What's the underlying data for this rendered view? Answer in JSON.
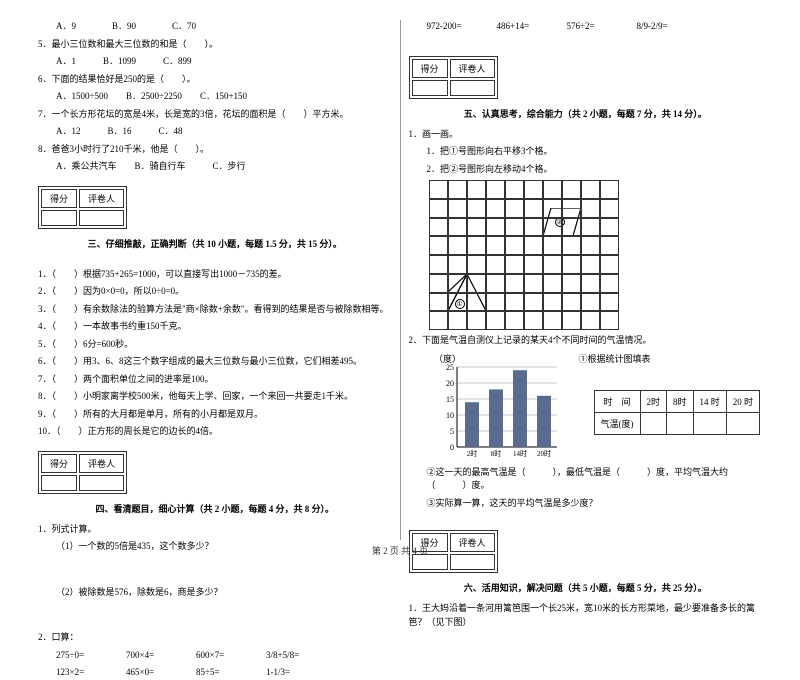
{
  "col1": {
    "q4_opts": {
      "a": "A．9",
      "b": "B．90",
      "c": "C．70"
    },
    "q5": "5．最小三位数和最大三位数的和是（　　）。",
    "q5_opts": {
      "a": "A．1",
      "b": "B．1099",
      "c": "C．899"
    },
    "q6": "6．下面的结果恰好是250的是（　　）。",
    "q6_opts": {
      "a": "A．1500÷500",
      "b": "B．2500÷2250",
      "c": "C．150+150"
    },
    "q7": "7．一个长方形花坛的宽是4米，长是宽的3倍，花坛的面积是（　　）平方米。",
    "q7_opts": {
      "a": "A．12",
      "b": "B．16",
      "c": "C．48"
    },
    "q8": "8．爸爸3小时行了210千米，他是（　　）。",
    "q8_opts": {
      "a": "A．乘公共汽车",
      "b": "B．骑自行车",
      "c": "C．步行"
    },
    "score_label_1": "得分",
    "score_label_2": "评卷人",
    "section3_title": "三、仔细推敲，正确判断（共 10 小题，每题 1.5 分，共 15 分）。",
    "s3_items": [
      "1．（　　）根据735+265=1000，可以直接写出1000－735的差。",
      "2．（　　）因为0×0=0，所以0÷0=0。",
      "3．（　　）有余数除法的验算方法是\"商×除数+余数\"。看得到的结果是否与被除数相等。",
      "4．（　　）一本故事书约重150千克。",
      "5．（　　）6分=600秒。",
      "6．（　　）用3、6、8这三个数字组成的最大三位数与最小三位数，它们相差495。",
      "7．（　　）两个面积单位之间的进率是100。",
      "8．（　　）小明家离学校500米，他每天上学、回家，一个来回一共要走1千米。",
      "9．（　　）所有的大月都是单月，所有的小月都是双月。",
      "10．（　　）正方形的周长是它的边长的4倍。"
    ],
    "section4_title": "四、看清题目，细心计算（共 2 小题，每题 4 分，共 8 分）。",
    "s4_q1": "1．列式计算。",
    "s4_q1a": "（1）一个数的5倍是435，这个数多少？",
    "s4_q1b": "（2）被除数是576，除数是6，商是多少？",
    "s4_q2": "2．口算：",
    "calc1": {
      "a": "275÷0=",
      "b": "700×4=",
      "c": "600×7=",
      "d": "3/8+5/8="
    },
    "calc2": {
      "a": "123×2=",
      "b": "465×0=",
      "c": "85÷5=",
      "d": "1-1/3="
    }
  },
  "col2": {
    "calc3": {
      "a": "972-200=",
      "b": "486+14=",
      "c": "576÷2=",
      "d": "8/9-2/9="
    },
    "section5_title": "五、认真思考，综合能力（共 2 小题，每题 7 分，共 14 分）。",
    "s5_q1": "1．画一画。",
    "s5_q1a": "1．把①号图形向右平移3个格。",
    "s5_q1b": "2．把②号图形向左移动4个格。",
    "label1": "①",
    "label2": "②",
    "s5_q2": "2．下面是气温自测仪上记录的某天4个不同时间的气温情况。",
    "chart_ylabel": "（度）",
    "chart_title": "①根据统计图填表",
    "chart_ticks": [
      "25",
      "20",
      "15",
      "10",
      "5",
      "0"
    ],
    "chart_xlabels": [
      "2时",
      "8时",
      "14时",
      "20时"
    ],
    "chart_bars": [
      14,
      18,
      24,
      16
    ],
    "chart_bar_color": "#5b6b8f",
    "chart_grid_color": "#888",
    "table_header": [
      "时　间",
      "2时",
      "8时",
      "14 时",
      "20 时"
    ],
    "table_row2": "气温(度)",
    "s5_q2b": "②这一天的最高气温是（　　　），最低气温是（　　　）度，平均气温大约（　　　）度。",
    "s5_q2c": "③实际算一算，这天的平均气温是多少度？",
    "section6_title": "六、活用知识，解决问题（共 5 小题，每题 5 分，共 25 分）。",
    "s6_q1": "1．王大妈沿着一条河用篱笆围一个长25米，宽10米的长方形菜地，最少要准备多长的篱笆？（见下图）"
  },
  "footer": "第 2 页 共 4 页"
}
